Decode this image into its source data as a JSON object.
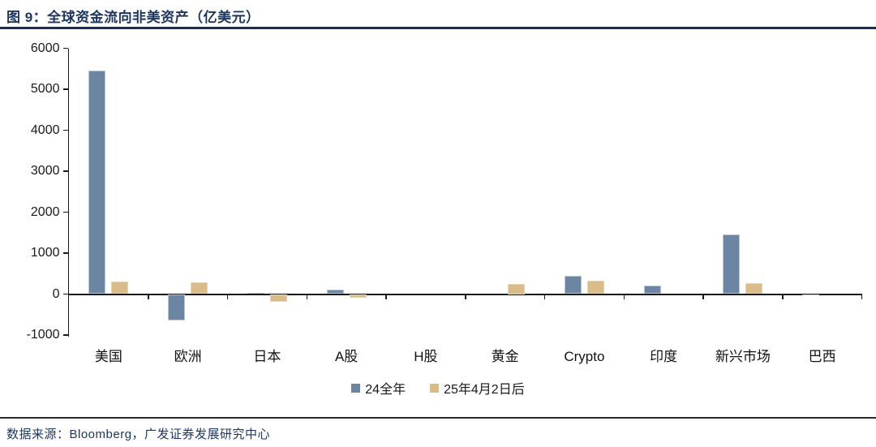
{
  "header": {
    "title": "图 9：全球资金流向非美资产（亿美元）"
  },
  "footer": {
    "source": "数据来源：Bloomberg，广发证券发展研究中心"
  },
  "colors": {
    "series_blue": "#6c85a2",
    "series_blue_edge": "#b9c4d4",
    "series_tan": "#d9bc8a",
    "series_tan_edge": "#e6d7b4",
    "title_navy": "#1e355e",
    "axis_black": "#1a1a1a"
  },
  "chart_data": {
    "type": "bar",
    "title": "全球资金流向非美资产（亿美元）",
    "xlabel": "",
    "ylabel": "",
    "categories": [
      "美国",
      "欧洲",
      "日本",
      "A股",
      "H股",
      "黄金",
      "Crypto",
      "印度",
      "新兴市场",
      "巴西"
    ],
    "series": [
      {
        "name": "24全年",
        "color": "#6c85a2",
        "edge": "#b9c4d4",
        "values": [
          5450,
          -650,
          30,
          110,
          0,
          0,
          450,
          210,
          1460,
          -30
        ]
      },
      {
        "name": "25年4月2日后",
        "color": "#d9bc8a",
        "edge": "#e6d7b4",
        "values": [
          310,
          280,
          -190,
          -80,
          0,
          250,
          320,
          0,
          260,
          0
        ]
      }
    ],
    "ylim": [
      -1000,
      6000
    ],
    "yticks": [
      6000,
      5000,
      4000,
      3000,
      2000,
      1000,
      0,
      -1000
    ],
    "grid": false,
    "legend_position": "bottom-center"
  }
}
